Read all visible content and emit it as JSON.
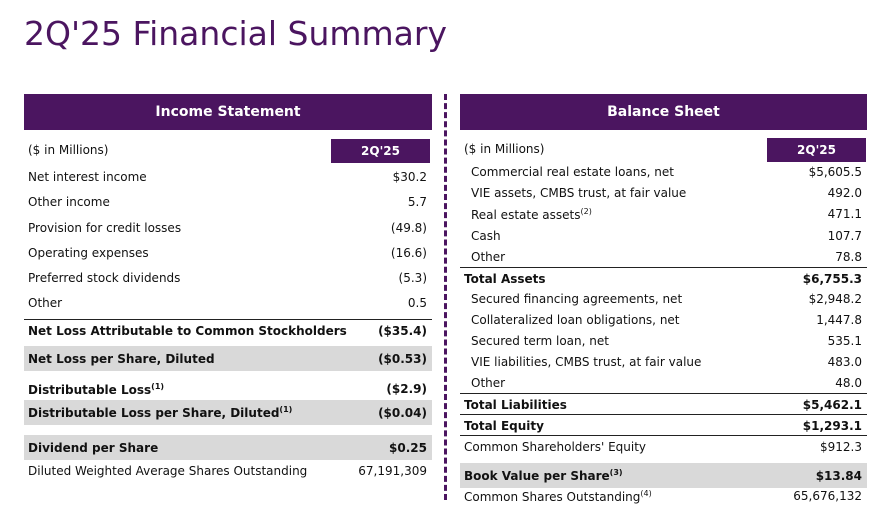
{
  "header": {
    "title": "2Q'25 Financial Summary"
  },
  "income_statement": {
    "title": "Income Statement",
    "units": "($ in Millions)",
    "period": "2Q'25",
    "rows": [
      {
        "label": "Net interest income",
        "value": "$30.2"
      },
      {
        "label": "Other income",
        "value": "5.7"
      },
      {
        "label": "Provision for credit losses",
        "value": "(49.8)"
      },
      {
        "label": "Operating expenses",
        "value": "(16.6)"
      },
      {
        "label": "Preferred stock dividends",
        "value": "(5.3)"
      },
      {
        "label": "Other",
        "value": "0.5"
      },
      {
        "label": "Net Loss Attributable to Common Stockholders",
        "value": "($35.4)"
      },
      {
        "label": "Net Loss per Share, Diluted",
        "value": "($0.53)"
      },
      {
        "label": "Distributable Loss",
        "note": "(1)",
        "value": "($2.9)"
      },
      {
        "label": "Distributable Loss per Share, Diluted",
        "note": "(1)",
        "value": "($0.04)"
      },
      {
        "label": "Dividend per Share",
        "value": "$0.25"
      },
      {
        "label": "Diluted Weighted Average Shares Outstanding",
        "value": "67,191,309"
      }
    ]
  },
  "balance_sheet": {
    "title": "Balance Sheet",
    "units": "($ in Millions)",
    "period": "2Q'25",
    "rows": [
      {
        "label": "Commercial real estate loans, net",
        "value": "$5,605.5"
      },
      {
        "label": "VIE assets, CMBS trust, at fair value",
        "value": "492.0"
      },
      {
        "label": "Real estate assets",
        "note": "(2)",
        "value": "471.1"
      },
      {
        "label": "Cash",
        "value": "107.7"
      },
      {
        "label": "Other",
        "value": "78.8"
      },
      {
        "label": "Total Assets",
        "value": "$6,755.3"
      },
      {
        "label": "Secured financing agreements, net",
        "value": "$2,948.2"
      },
      {
        "label": "Collateralized loan obligations, net",
        "value": "1,447.8"
      },
      {
        "label": "Secured term loan, net",
        "value": "535.1"
      },
      {
        "label": "VIE liabilities, CMBS trust, at fair value",
        "value": "483.0"
      },
      {
        "label": "Other",
        "value": "48.0"
      },
      {
        "label": "Total Liabilities",
        "value": "$5,462.1"
      },
      {
        "label": "Total Equity",
        "value": "$1,293.1"
      },
      {
        "label": "Common Shareholders' Equity",
        "value": "$912.3"
      },
      {
        "label": "Book Value per Share",
        "note": "(3)",
        "value": "$13.84"
      },
      {
        "label": "Common Shares Outstanding",
        "note": "(4)",
        "value": "65,676,132"
      }
    ]
  }
}
